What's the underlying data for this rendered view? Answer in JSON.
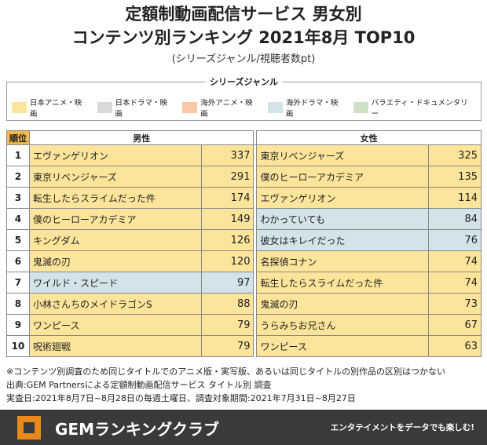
{
  "title_line1": "定額制動画配信サービス 男女別",
  "title_line2": "コンテンツ別ランキング 2021年8月 TOP10",
  "subtitle": "(シリーズジャンル/視聴者数pt)",
  "legend": {
    "title": "シリーズジャンル",
    "items": [
      {
        "label": "日本アニメ・映画",
        "color": "#fce59a"
      },
      {
        "label": "日本ドラマ・映画",
        "color": "#d9d9d9"
      },
      {
        "label": "海外アニメ・映画",
        "color": "#f9c9a6"
      },
      {
        "label": "海外ドラマ・映画",
        "color": "#d2e3ea"
      },
      {
        "label": "バラエティ・ドキュメンタリー",
        "color": "#cfe0c7"
      }
    ]
  },
  "table": {
    "rank_header": "順位",
    "male_header": "男性",
    "female_header": "女性"
  },
  "chart_data": {
    "type": "table",
    "ranks": [
      1,
      2,
      3,
      4,
      5,
      6,
      7,
      8,
      9,
      10
    ],
    "male": [
      {
        "name": "エヴァンゲリオン",
        "score": 337,
        "genre": "日本アニメ・映画"
      },
      {
        "name": "東京リベンジャーズ",
        "score": 291,
        "genre": "日本アニメ・映画"
      },
      {
        "name": "転生したらスライムだった件",
        "score": 174,
        "genre": "日本アニメ・映画"
      },
      {
        "name": "僕のヒーローアカデミア",
        "score": 149,
        "genre": "日本アニメ・映画"
      },
      {
        "name": "キングダム",
        "score": 126,
        "genre": "日本アニメ・映画"
      },
      {
        "name": "鬼滅の刃",
        "score": 120,
        "genre": "日本アニメ・映画"
      },
      {
        "name": "ワイルド・スピード",
        "score": 97,
        "genre": "海外ドラマ・映画"
      },
      {
        "name": "小林さんちのメイドラゴンS",
        "score": 88,
        "genre": "日本アニメ・映画"
      },
      {
        "name": "ワンピース",
        "score": 79,
        "genre": "日本アニメ・映画"
      },
      {
        "name": "呪術廻戦",
        "score": 79,
        "genre": "日本アニメ・映画"
      }
    ],
    "female": [
      {
        "name": "東京リベンジャーズ",
        "score": 325,
        "genre": "日本アニメ・映画"
      },
      {
        "name": "僕のヒーローアカデミア",
        "score": 135,
        "genre": "日本アニメ・映画"
      },
      {
        "name": "エヴァンゲリオン",
        "score": 114,
        "genre": "日本アニメ・映画"
      },
      {
        "name": "わかっていても",
        "score": 84,
        "genre": "海外ドラマ・映画"
      },
      {
        "name": "彼女はキレイだった",
        "score": 76,
        "genre": "海外ドラマ・映画"
      },
      {
        "name": "名探偵コナン",
        "score": 74,
        "genre": "日本アニメ・映画"
      },
      {
        "name": "転生したらスライムだった件",
        "score": 74,
        "genre": "日本アニメ・映画"
      },
      {
        "name": "鬼滅の刃",
        "score": 73,
        "genre": "日本アニメ・映画"
      },
      {
        "name": "うらみちお兄さん",
        "score": 67,
        "genre": "日本アニメ・映画"
      },
      {
        "name": "ワンピース",
        "score": 63,
        "genre": "日本アニメ・映画"
      }
    ]
  },
  "notes": [
    "※コンテンツ別調査のため同じタイトルでのアニメ版・実写版、あるいは同じタイトルの別作品の区別はつかない",
    "出典:GEM Partnersによる定額制動画配信サービス タイトル別 調査",
    "実査日:2021年8月7日~8月28日の毎週土曜日、調査対象期間:2021年7月31日~8月27日"
  ],
  "footer": {
    "title": "GEMランキングクラブ",
    "tagline": "エンタテイメントをデータでも楽しむ!"
  }
}
